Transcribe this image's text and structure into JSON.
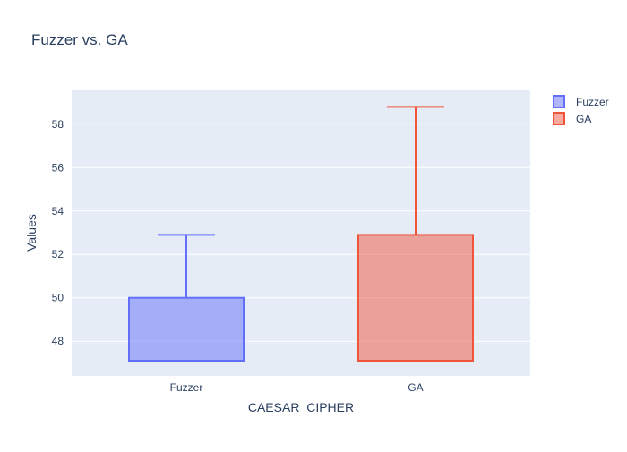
{
  "chart_data": {
    "type": "box",
    "title": "Fuzzer vs. GA",
    "xlabel": "CAESAR_CIPHER",
    "ylabel": "Values",
    "categories": [
      "Fuzzer",
      "GA"
    ],
    "ylim": [
      46.4,
      59.6
    ],
    "yticks": [
      48,
      50,
      52,
      54,
      56,
      58
    ],
    "grid": true,
    "legend_position": "top-right",
    "series": [
      {
        "name": "Fuzzer",
        "category": "Fuzzer",
        "min": 47.1,
        "q1": 47.1,
        "median": 47.1,
        "q3": 50.0,
        "max": 52.9,
        "color": "#636efa"
      },
      {
        "name": "GA",
        "category": "GA",
        "min": 47.1,
        "q1": 47.1,
        "median": 47.1,
        "q3": 52.9,
        "max": 58.8,
        "color": "#ef553b"
      }
    ],
    "plot_background": "#e5ecf6",
    "text_color": "#2a3f5f"
  }
}
